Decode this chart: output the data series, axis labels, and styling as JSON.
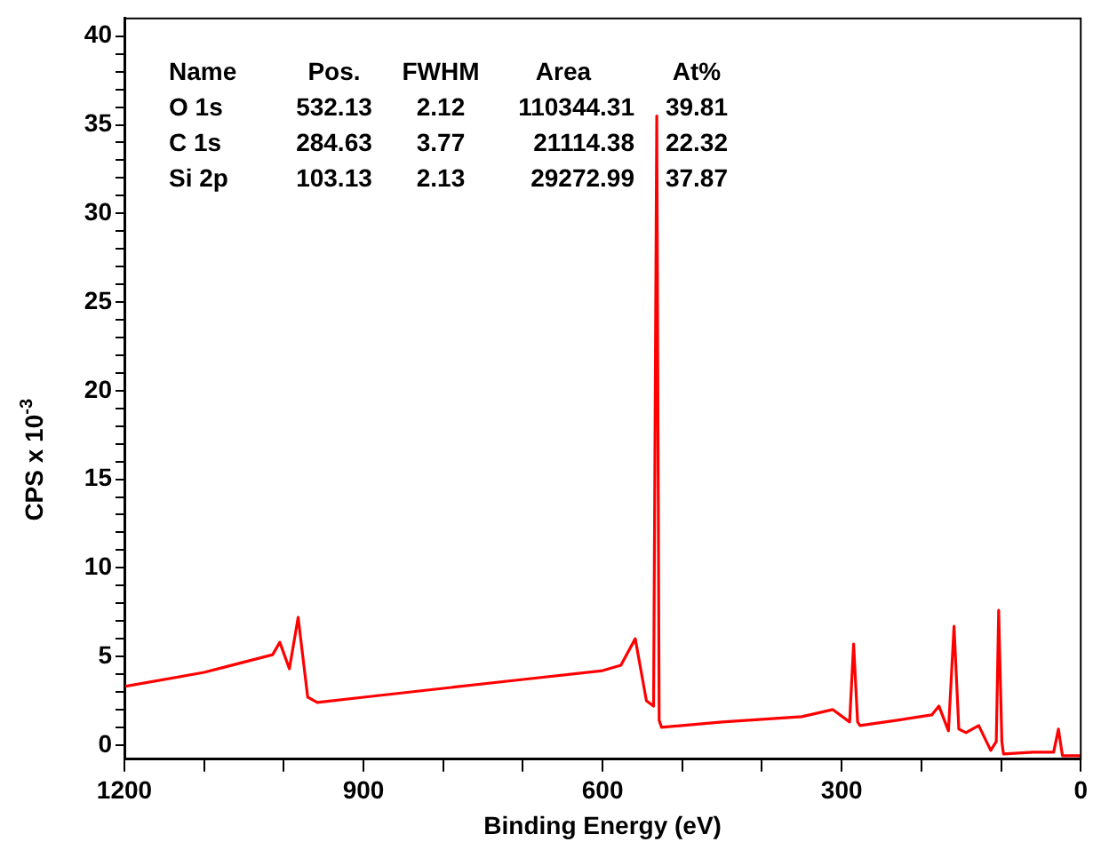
{
  "chart_data": {
    "type": "line",
    "xlabel": "Binding Energy (eV)",
    "ylabel": "CPS x 10$^{-3}$",
    "x": [
      1200,
      1100,
      1014,
      1005,
      993,
      982,
      970,
      958,
      900,
      800,
      700,
      600,
      577,
      559,
      545,
      536,
      532,
      529,
      526,
      450,
      350,
      311,
      290,
      285,
      280,
      277,
      230,
      187,
      178,
      166,
      159,
      153,
      144,
      128,
      113,
      106,
      103,
      99,
      97,
      60,
      34,
      28,
      23,
      0
    ],
    "series": [
      {
        "color": "#ff0000",
        "values": [
          3.3,
          4.1,
          5.1,
          5.8,
          4.3,
          7.2,
          2.7,
          2.4,
          2.7,
          3.2,
          3.7,
          4.2,
          4.5,
          6.0,
          2.5,
          2.2,
          35.5,
          1.4,
          1.0,
          1.3,
          1.6,
          2.0,
          1.3,
          5.7,
          1.3,
          1.1,
          1.4,
          1.7,
          2.2,
          0.8,
          6.7,
          0.9,
          0.7,
          1.1,
          -0.3,
          0.2,
          7.6,
          0.2,
          -0.5,
          -0.4,
          -0.4,
          0.9,
          -0.6,
          -0.6
        ]
      }
    ],
    "xlim": [
      1200,
      0
    ],
    "xticks": [
      1200,
      {
        "value": 1100,
        "label": null
      },
      {
        "value": 1000,
        "label": null
      },
      900,
      {
        "value": 800,
        "label": null
      },
      {
        "value": 700,
        "label": null
      },
      600,
      {
        "value": 500,
        "label": null
      },
      {
        "value": 400,
        "label": null
      },
      300,
      {
        "value": 200,
        "label": null
      },
      {
        "value": 100,
        "label": null
      },
      0
    ],
    "ylim": [
      -0.8,
      41
    ],
    "yticks": [
      0,
      {
        "value": 1,
        "label": null
      },
      {
        "value": 2,
        "label": null
      },
      {
        "value": 3,
        "label": null
      },
      {
        "value": 4,
        "label": null
      },
      5,
      {
        "value": 6,
        "label": null
      },
      {
        "value": 7,
        "label": null
      },
      {
        "value": 8,
        "label": null
      },
      {
        "value": 9,
        "label": null
      },
      10,
      {
        "value": 11,
        "label": null
      },
      {
        "value": 12,
        "label": null
      },
      {
        "value": 13,
        "label": null
      },
      {
        "value": 14,
        "label": null
      },
      15,
      {
        "value": 16,
        "label": null
      },
      {
        "value": 17,
        "label": null
      },
      {
        "value": 18,
        "label": null
      },
      {
        "value": 19,
        "label": null
      },
      20,
      {
        "value": 21,
        "label": null
      },
      {
        "value": 22,
        "label": null
      },
      {
        "value": 23,
        "label": null
      },
      {
        "value": 24,
        "label": null
      },
      25,
      {
        "value": 26,
        "label": null
      },
      {
        "value": 27,
        "label": null
      },
      {
        "value": 28,
        "label": null
      },
      {
        "value": 29,
        "label": null
      },
      30,
      {
        "value": 31,
        "label": null
      },
      {
        "value": 32,
        "label": null
      },
      {
        "value": 33,
        "label": null
      },
      {
        "value": 34,
        "label": null
      },
      35,
      {
        "value": 36,
        "label": null
      },
      {
        "value": 37,
        "label": null
      },
      {
        "value": 38,
        "label": null
      },
      {
        "value": 39,
        "label": null
      },
      40
    ],
    "grid": false,
    "legend": false,
    "marker": "none",
    "line_style": "solid",
    "annotations": [
      "Name",
      "Pos.",
      "FWHM",
      "Area",
      "At%",
      "O 1s",
      "532.13",
      "2.12",
      "110344.31",
      "39.81",
      "C 1s",
      "284.63",
      "3.77",
      "21114.38",
      "22.32",
      "Si 2p",
      "103.13",
      "2.13",
      "29272.99",
      "37.87"
    ]
  }
}
